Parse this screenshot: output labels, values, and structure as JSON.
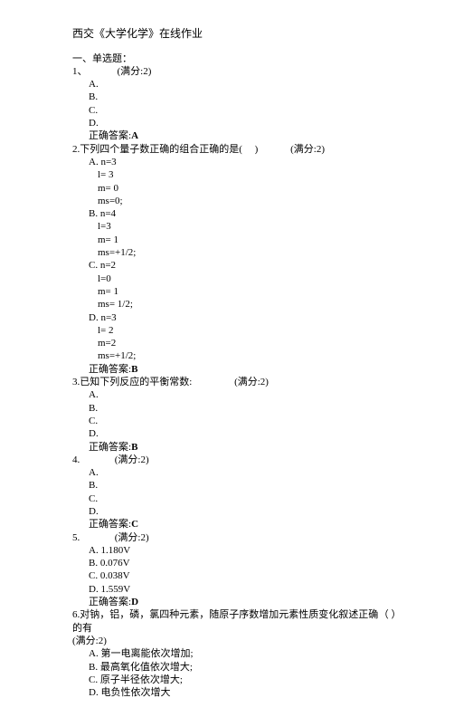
{
  "title": "西交《大学化学》在线作业",
  "section_header": "一、单选题：",
  "score_label": "(满分:2)",
  "answer_prefix": "正确答案:",
  "questions": [
    {
      "num": "1、",
      "stem": "",
      "score": "(满分:2)",
      "options": [
        {
          "label": "A.",
          "text": ""
        },
        {
          "label": "B.",
          "text": ""
        },
        {
          "label": "C.",
          "text": ""
        },
        {
          "label": "D.",
          "text": ""
        }
      ],
      "answer": "A"
    },
    {
      "num": "2.",
      "stem": "下列四个量子数正确的组合正确的是(",
      "stem_after": ")",
      "score": "(满分:2)",
      "options": [
        {
          "label": "A.",
          "text": "n=3",
          "lines": [
            "l= 3",
            "m= 0",
            "ms=0;"
          ]
        },
        {
          "label": "B.",
          "text": "n=4",
          "lines": [
            "l=3",
            "m= 1",
            "ms=+1/2;"
          ]
        },
        {
          "label": "C.",
          "text": "n=2",
          "lines": [
            "l=0",
            "m= 1",
            "ms= 1/2;"
          ]
        },
        {
          "label": "D.",
          "text": "n=3",
          "lines": [
            "l= 2",
            "m=2",
            "ms=+1/2;"
          ]
        }
      ],
      "answer": "B"
    },
    {
      "num": "3.",
      "stem": "已知下列反应的平衡常数:",
      "score": "(满分:2)",
      "options": [
        {
          "label": "A.",
          "text": ""
        },
        {
          "label": "B.",
          "text": ""
        },
        {
          "label": "C.",
          "text": ""
        },
        {
          "label": "D.",
          "text": ""
        }
      ],
      "answer": "B"
    },
    {
      "num": "4.",
      "stem": "",
      "score": "(满分:2)",
      "options": [
        {
          "label": "A.",
          "text": ""
        },
        {
          "label": "B.",
          "text": ""
        },
        {
          "label": "C.",
          "text": ""
        },
        {
          "label": "D.",
          "text": ""
        }
      ],
      "answer": "C"
    },
    {
      "num": "5.",
      "stem": "",
      "score": "(满分:2)",
      "options": [
        {
          "label": "A.",
          "text": "1.180V"
        },
        {
          "label": "B.",
          "text": "0.076V"
        },
        {
          "label": "C.",
          "text": "0.038V"
        },
        {
          "label": "D.",
          "text": "1.559V"
        }
      ],
      "answer": "D"
    },
    {
      "num": "6.",
      "stem": "对钠，铝，磷，氯四种元素，随原子序数增加元素性质变化叙述正确的有",
      "stem_after_paren": "（      ）",
      "score": "(满分:2)",
      "options": [
        {
          "label": "A.",
          "text": " 第一电离能依次增加;"
        },
        {
          "label": "B.",
          "text": " 最高氧化值依次增大;"
        },
        {
          "label": "C.",
          "text": " 原子半径依次增大;"
        },
        {
          "label": "D.",
          "text": " 电负性依次增大"
        }
      ]
    }
  ]
}
